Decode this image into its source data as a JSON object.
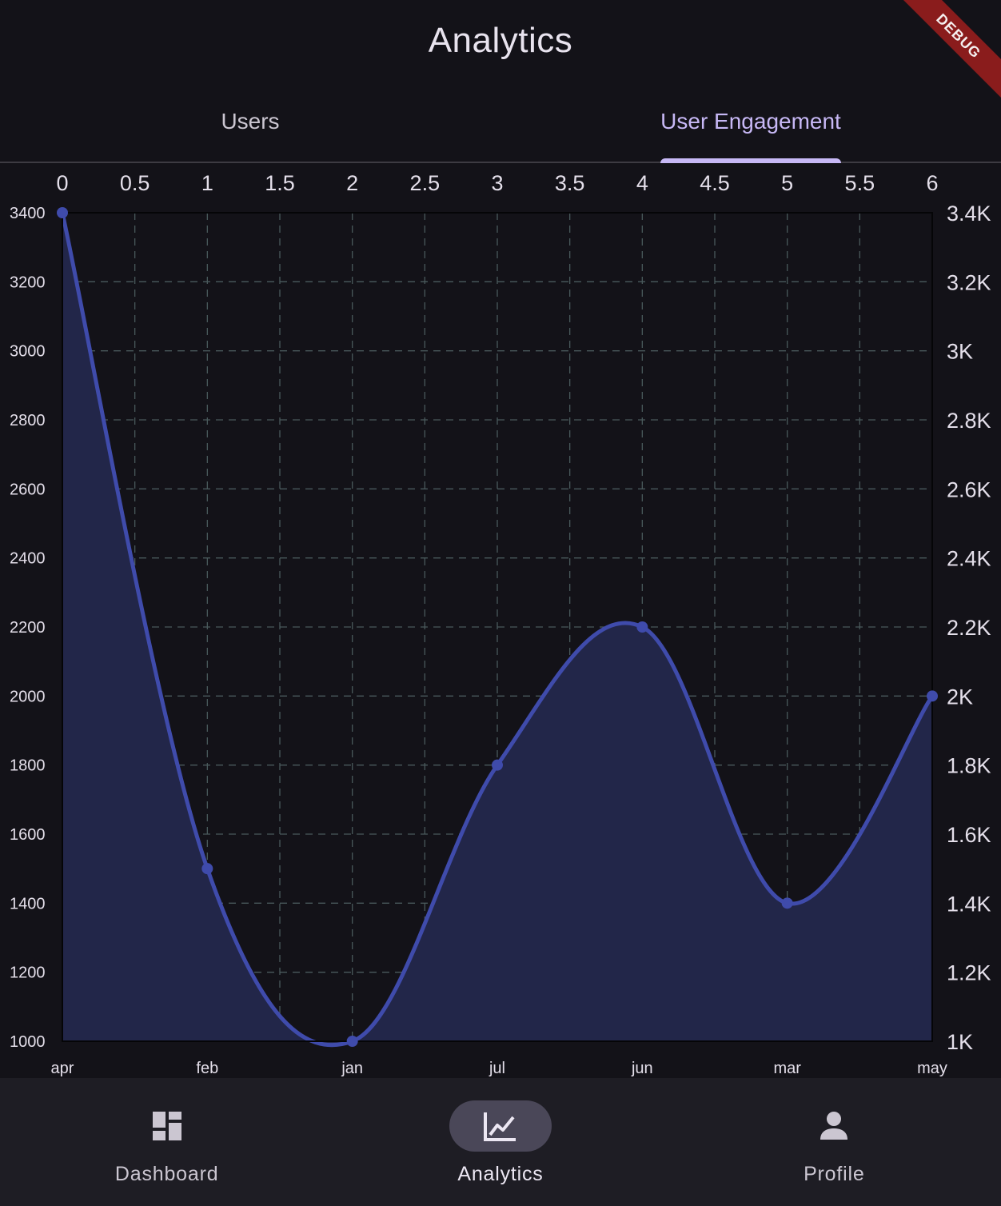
{
  "app_bar": {
    "title": "Analytics"
  },
  "tabs": [
    {
      "label": "Users",
      "active": false
    },
    {
      "label": "User Engagement",
      "active": true
    }
  ],
  "debug_banner": {
    "label": "DEBUG",
    "color": "#8a1c1c"
  },
  "chart_data": {
    "type": "area",
    "title": "",
    "xlabel": "",
    "ylabel": "",
    "x": [
      0,
      1,
      2,
      3,
      4,
      5,
      6
    ],
    "categories": [
      "apr",
      "feb",
      "jan",
      "jul",
      "jun",
      "mar",
      "may"
    ],
    "series": [
      {
        "values": [
          3400,
          1500,
          1000,
          1800,
          2200,
          1400,
          2000
        ]
      }
    ],
    "xlim": [
      0,
      6
    ],
    "ylim": [
      1000,
      3400
    ],
    "top_ticks": [
      "0",
      "0.5",
      "1",
      "1.5",
      "2",
      "2.5",
      "3",
      "3.5",
      "4",
      "4.5",
      "5",
      "5.5",
      "6"
    ],
    "top_tick_values": [
      0,
      0.5,
      1,
      1.5,
      2,
      2.5,
      3,
      3.5,
      4,
      4.5,
      5,
      5.5,
      6
    ],
    "left_ticks": [
      "1000",
      "1200",
      "1400",
      "1600",
      "1800",
      "2000",
      "2200",
      "2400",
      "2600",
      "2800",
      "3000",
      "3200",
      "3400"
    ],
    "right_ticks": [
      "1K",
      "1.2K",
      "1.4K",
      "1.6K",
      "1.8K",
      "2K",
      "2.2K",
      "2.4K",
      "2.6K",
      "2.8K",
      "3K",
      "3.2K",
      "3.4K"
    ],
    "y_tick_values": [
      1000,
      1200,
      1400,
      1600,
      1800,
      2000,
      2200,
      2400,
      2600,
      2800,
      3000,
      3200,
      3400
    ],
    "grid": true,
    "grid_style": "dashed",
    "curved": true,
    "line_color": "#3f4bab",
    "fill_color": "#222649",
    "grid_color": "#4a5a5c"
  },
  "bottom_nav": {
    "items": [
      {
        "label": "Dashboard",
        "icon": "dashboard-icon",
        "active": false
      },
      {
        "label": "Analytics",
        "icon": "analytics-icon",
        "active": true
      },
      {
        "label": "Profile",
        "icon": "profile-icon",
        "active": false
      }
    ]
  },
  "colors": {
    "background": "#131218",
    "accent": "#c7b8f5",
    "nav_background": "#1e1d24",
    "nav_pill": "#4a4758"
  }
}
